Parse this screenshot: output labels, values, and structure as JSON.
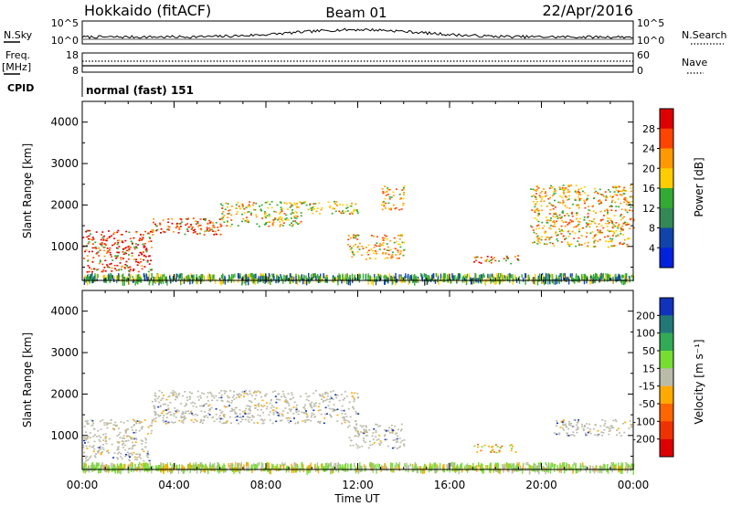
{
  "header": {
    "station": "Hokkaido (fitACF)",
    "beam": "Beam 01",
    "date": "22/Apr/2016"
  },
  "noise_panel": {
    "left_label": "N.Sky",
    "right_label": "N.Search",
    "left_ticks": [
      "10^5",
      "10^0"
    ],
    "right_ticks": [
      "10^5",
      "10^0"
    ]
  },
  "freq_panel": {
    "left_label": "Freq.",
    "left_unit": "[MHz]",
    "right_label": "Nave",
    "left_ticks": [
      "18",
      "8"
    ],
    "right_ticks": [
      "60",
      "0"
    ]
  },
  "cpid": {
    "label": "CPID",
    "value": "normal (fast) 151"
  },
  "chart_data": [
    {
      "type": "heatmap",
      "quantity": "Power",
      "ylabel": "Slant Range [km]",
      "xlabel": "Time UT",
      "x_ticks": [
        "00:00",
        "04:00",
        "08:00",
        "12:00",
        "16:00",
        "20:00",
        "00:00"
      ],
      "xlim": [
        0,
        24
      ],
      "ylim": [
        180,
        4500
      ],
      "y_ticks": [
        1000,
        2000,
        3000,
        4000
      ],
      "colorbar": {
        "label": "Power [dB]",
        "ticks": [
          "28",
          "24",
          "20",
          "16",
          "12",
          "8",
          "4"
        ],
        "colors": [
          "#dd0000",
          "#ff4400",
          "#ff9900",
          "#ffcc00",
          "#33aa33",
          "#338855",
          "#1144aa",
          "#0022dd"
        ]
      },
      "echo_regions": [
        {
          "t0": 0.0,
          "t1": 3.0,
          "r0": 400,
          "r1": 1400,
          "level": 28
        },
        {
          "t0": 3.0,
          "t1": 6.0,
          "r0": 1300,
          "r1": 1700,
          "level": 24
        },
        {
          "t0": 6.0,
          "t1": 9.5,
          "r0": 1500,
          "r1": 2100,
          "level": 16
        },
        {
          "t0": 9.5,
          "t1": 12.0,
          "r0": 1800,
          "r1": 2100,
          "level": 16
        },
        {
          "t0": 11.5,
          "t1": 14.0,
          "r0": 700,
          "r1": 1300,
          "level": 20
        },
        {
          "t0": 13.0,
          "t1": 14.0,
          "r0": 1900,
          "r1": 2500,
          "level": 20
        },
        {
          "t0": 17.0,
          "t1": 19.0,
          "r0": 600,
          "r1": 800,
          "level": 24
        },
        {
          "t0": 19.5,
          "t1": 24.0,
          "r0": 1000,
          "r1": 2500,
          "level": 20
        }
      ]
    },
    {
      "type": "heatmap",
      "quantity": "Velocity",
      "ylabel": "Slant Range [km]",
      "xlabel": "Time UT",
      "x_ticks": [
        "00:00",
        "04:00",
        "08:00",
        "12:00",
        "16:00",
        "20:00",
        "00:00"
      ],
      "xlim": [
        0,
        24
      ],
      "ylim": [
        180,
        4500
      ],
      "y_ticks": [
        1000,
        2000,
        3000,
        4000
      ],
      "colorbar": {
        "label": "Velocity [m s⁻¹]",
        "ticks": [
          "200",
          "100",
          "50",
          "15",
          "-15",
          "-50",
          "-100",
          "-200"
        ],
        "colors": [
          "#1133bb",
          "#227777",
          "#33aa55",
          "#77dd33",
          "#bbbbaa",
          "#ffaa00",
          "#ff6600",
          "#ee3300",
          "#dd0000"
        ]
      },
      "echo_regions": [
        {
          "t0": 0.0,
          "t1": 3.0,
          "r0": 400,
          "r1": 1400,
          "level": 0
        },
        {
          "t0": 3.0,
          "t1": 12.0,
          "r0": 1300,
          "r1": 2100,
          "level": 0
        },
        {
          "t0": 11.5,
          "t1": 14.0,
          "r0": 700,
          "r1": 1300,
          "level": 0
        },
        {
          "t0": 17.0,
          "t1": 19.0,
          "r0": 600,
          "r1": 800,
          "level": -50
        },
        {
          "t0": 20.5,
          "t1": 24.0,
          "r0": 1000,
          "r1": 1400,
          "level": 0
        }
      ]
    }
  ]
}
